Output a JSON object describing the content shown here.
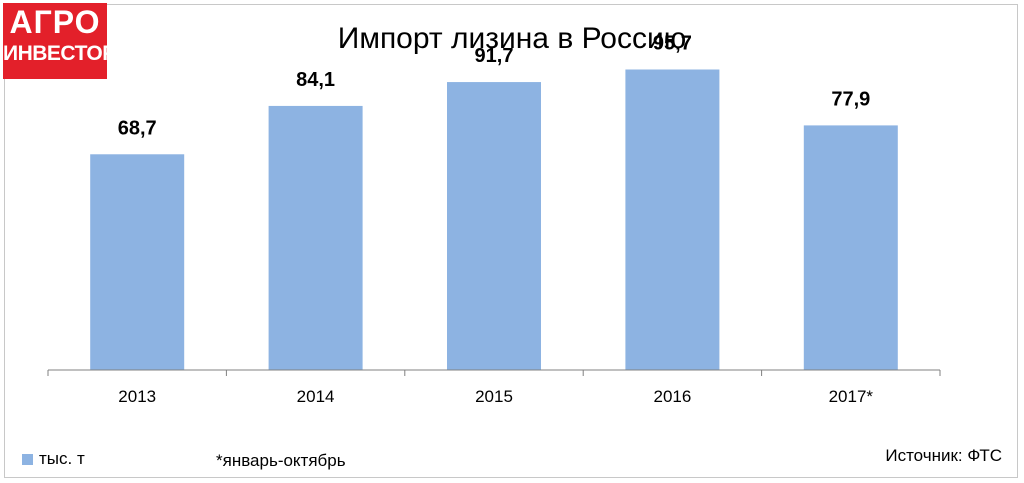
{
  "logo": {
    "line1": "АГРО",
    "line2": "ИНВЕСТОР"
  },
  "legend": {
    "label": "тыс. т"
  },
  "footnote": "*январь-октябрь",
  "source": "Источник: ФТС",
  "colors": {
    "bar": "#8db3e2",
    "logo_bg": "#e3202a",
    "axis": "#808080"
  },
  "chart_data": {
    "type": "bar",
    "title": "Импорт лизина в Россию",
    "xlabel": "",
    "ylabel": "",
    "categories": [
      "2013",
      "2014",
      "2015",
      "2016",
      "2017*"
    ],
    "series": [
      {
        "name": "тыс. т",
        "values": [
          68.7,
          84.1,
          91.7,
          95.7,
          77.9
        ]
      }
    ],
    "data_labels": [
      "68,7",
      "84,1",
      "91,7",
      "95,7",
      "77,9"
    ],
    "ylim": [
      0,
      100
    ],
    "grid": false,
    "legend_position": "bottom-left"
  }
}
